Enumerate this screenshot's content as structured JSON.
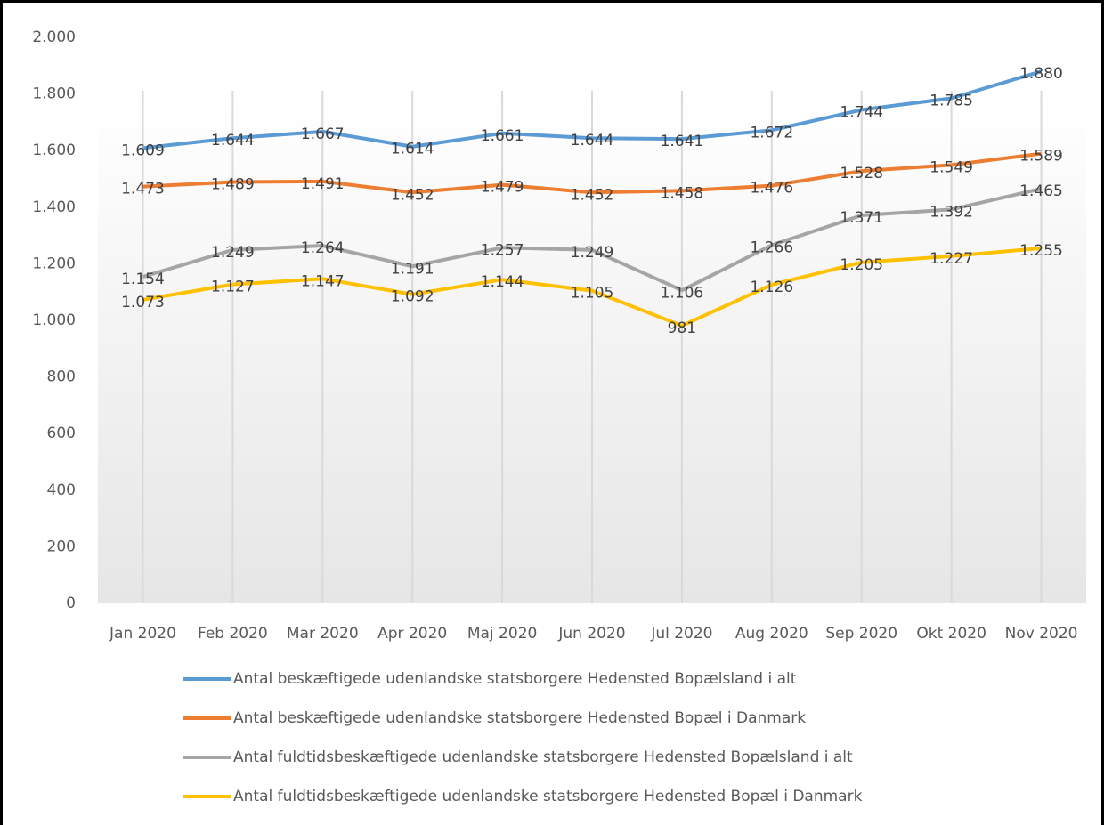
{
  "chart_data": {
    "type": "line",
    "categories": [
      "Jan 2020",
      "Feb 2020",
      "Mar 2020",
      "Apr 2020",
      "Maj 2020",
      "Jun 2020",
      "Jul 2020",
      "Aug 2020",
      "Sep 2020",
      "Okt 2020",
      "Nov 2020"
    ],
    "ylim": [
      0,
      2000
    ],
    "yticks": [
      0,
      200,
      400,
      600,
      800,
      {
        "value": 1000,
        "label": "1.000"
      },
      {
        "value": 1200,
        "label": "1.200"
      },
      {
        "value": 1400,
        "label": "1.400"
      },
      {
        "value": 1600,
        "label": "1.600"
      },
      {
        "value": 1800,
        "label": "1.800"
      },
      {
        "value": 2000,
        "label": "2.000"
      }
    ],
    "grid": true,
    "legend": "bottom",
    "series": [
      {
        "name": "Antal beskæftigede udenlandske statsborgere Hedensted Bopælsland i alt",
        "color": "#5b9bd5",
        "values": [
          1609,
          1644,
          1667,
          1614,
          1661,
          1644,
          1641,
          1672,
          1744,
          1785,
          1880
        ],
        "value_labels": [
          "1.609",
          "1.644",
          "1.667",
          "1.614",
          "1.661",
          "1.644",
          "1.641",
          "1.672",
          "1.744",
          "1.785",
          "1.880"
        ]
      },
      {
        "name": "Antal beskæftigede udenlandske statsborgere Hedensted Bopæl i Danmark",
        "color": "#ed7d31",
        "values": [
          1473,
          1489,
          1491,
          1452,
          1479,
          1452,
          1458,
          1476,
          1528,
          1549,
          1589
        ],
        "value_labels": [
          "1.473",
          "1.489",
          "1.491",
          "1.452",
          "1.479",
          "1.452",
          "1.458",
          "1.476",
          "1.528",
          "1.549",
          "1.589"
        ]
      },
      {
        "name": "Antal fuldtidsbeskæftigede udenlandske statsborgere Hedensted Bopælsland i alt",
        "color": "#a5a5a5",
        "values": [
          1154,
          1249,
          1264,
          1191,
          1257,
          1249,
          1106,
          1266,
          1371,
          1392,
          1465
        ],
        "value_labels": [
          "1.154",
          "1.249",
          "1.264",
          "1.191",
          "1.257",
          "1.249",
          "1.106",
          "1.266",
          "1.371",
          "1.392",
          "1.465"
        ]
      },
      {
        "name": "Antal fuldtidsbeskæftigede udenlandske statsborgere Hedensted Bopæl i Danmark",
        "color": "#ffc000",
        "values": [
          1073,
          1127,
          1147,
          1092,
          1144,
          1105,
          981,
          1126,
          1205,
          1227,
          1255
        ],
        "value_labels": [
          "1.073",
          "1.127",
          "1.147",
          "1.092",
          "1.144",
          "1.105",
          "981",
          "1.126",
          "1.205",
          "1.227",
          "1.255"
        ]
      }
    ]
  }
}
